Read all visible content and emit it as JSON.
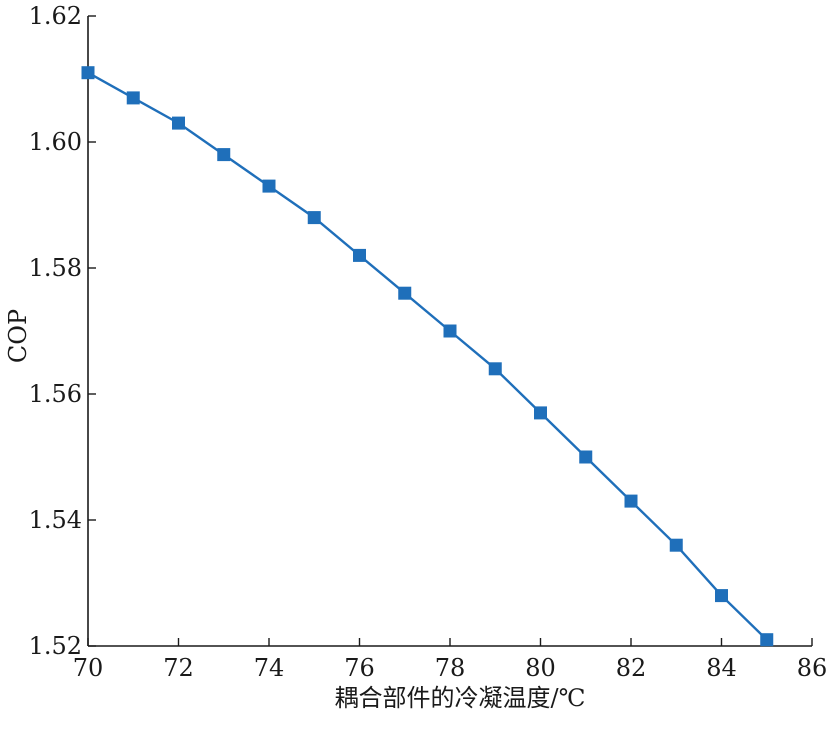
{
  "chart_data": {
    "type": "line",
    "title": "",
    "xlabel": "耦合部件的冷凝温度/℃",
    "ylabel": "COP",
    "xlim": [
      70,
      86
    ],
    "ylim": [
      1.52,
      1.62
    ],
    "xticks": [
      70,
      72,
      74,
      76,
      78,
      80,
      82,
      84,
      86
    ],
    "yticks": [
      1.52,
      1.54,
      1.56,
      1.58,
      1.6,
      1.62
    ],
    "ytick_labels": [
      "1.52",
      "1.54",
      "1.56",
      "1.58",
      "1.60",
      "1.62"
    ],
    "grid": false,
    "marker": "square",
    "colors": {
      "series": "#1f6fba",
      "axis": "#1a1a1a"
    },
    "series": [
      {
        "x": [
          70,
          71,
          72,
          73,
          74,
          75,
          76,
          77,
          78,
          79,
          80,
          81,
          82,
          83,
          84,
          85
        ],
        "values": [
          1.611,
          1.607,
          1.603,
          1.598,
          1.593,
          1.588,
          1.582,
          1.576,
          1.57,
          1.564,
          1.557,
          1.55,
          1.543,
          1.536,
          1.528,
          1.521
        ]
      }
    ]
  }
}
